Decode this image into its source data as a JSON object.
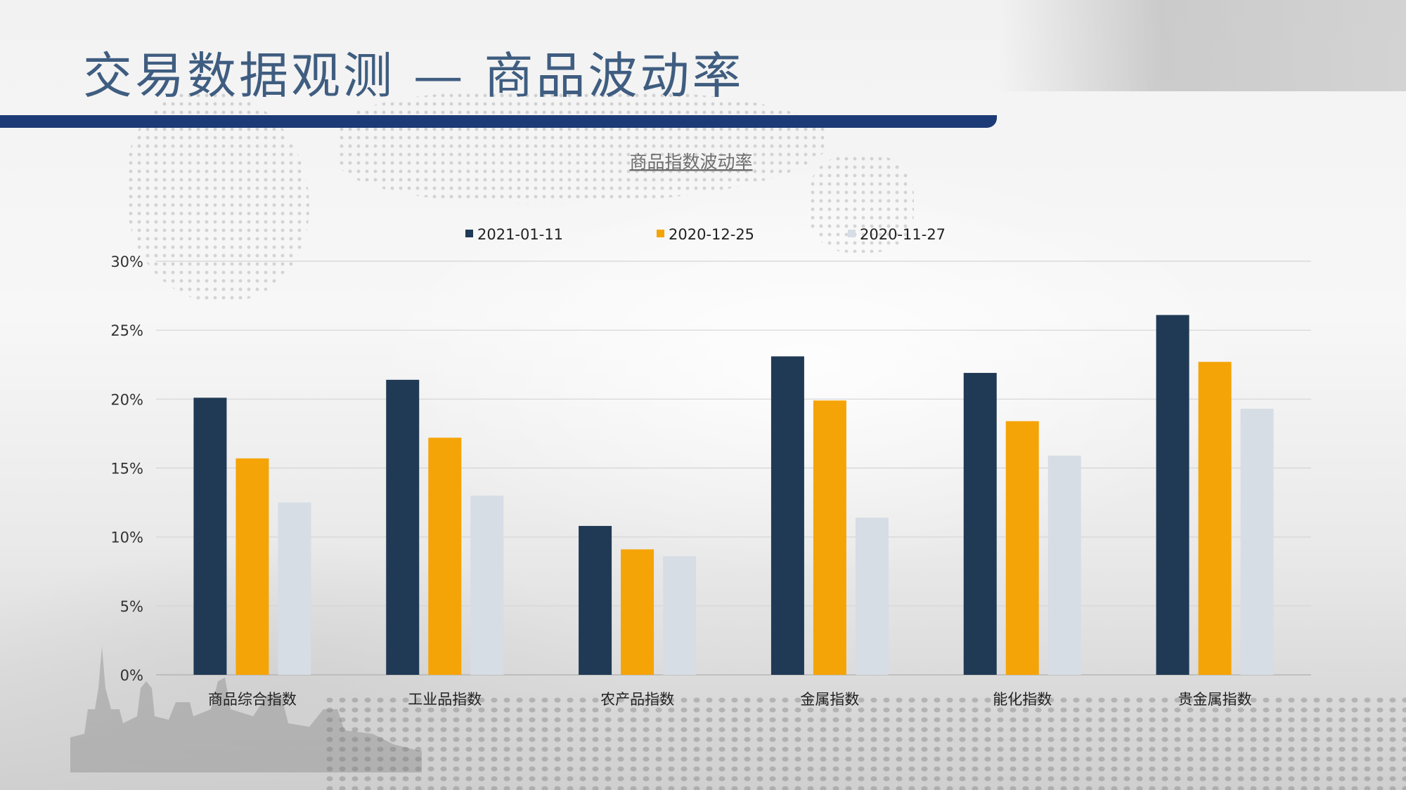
{
  "slide": {
    "title": "交易数据观测 — 商品波动率"
  },
  "colors": {
    "title_text": "#3f5d80",
    "title_bar": "#1c3a75",
    "series_1": "#203a55",
    "series_2": "#f5a407",
    "series_3": "#d6dde5"
  },
  "chart_data": {
    "type": "bar",
    "title": "商品指数波动率",
    "categories": [
      "商品综合指数",
      "工业品指数",
      "农产品指数",
      "金属指数",
      "能化指数",
      "贵金属指数"
    ],
    "series": [
      {
        "name": "2021-01-11",
        "color": "#203a55",
        "values": [
          0.201,
          0.214,
          0.108,
          0.231,
          0.219,
          0.261
        ]
      },
      {
        "name": "2020-12-25",
        "color": "#f5a407",
        "values": [
          0.157,
          0.172,
          0.091,
          0.199,
          0.184,
          0.227
        ]
      },
      {
        "name": "2020-11-27",
        "color": "#d6dde5",
        "values": [
          0.125,
          0.13,
          0.086,
          0.114,
          0.159,
          0.193
        ]
      }
    ],
    "ylim": [
      0,
      0.3
    ],
    "yticks": [
      {
        "value": 0,
        "label": "0%"
      },
      {
        "value": 0.05,
        "label": "5%"
      },
      {
        "value": 0.1,
        "label": "10%"
      },
      {
        "value": 0.15,
        "label": "15%"
      },
      {
        "value": 0.2,
        "label": "20%"
      },
      {
        "value": 0.25,
        "label": "25%"
      },
      {
        "value": 0.3,
        "label": "30%"
      }
    ],
    "grid": true,
    "legend": "top-center"
  }
}
